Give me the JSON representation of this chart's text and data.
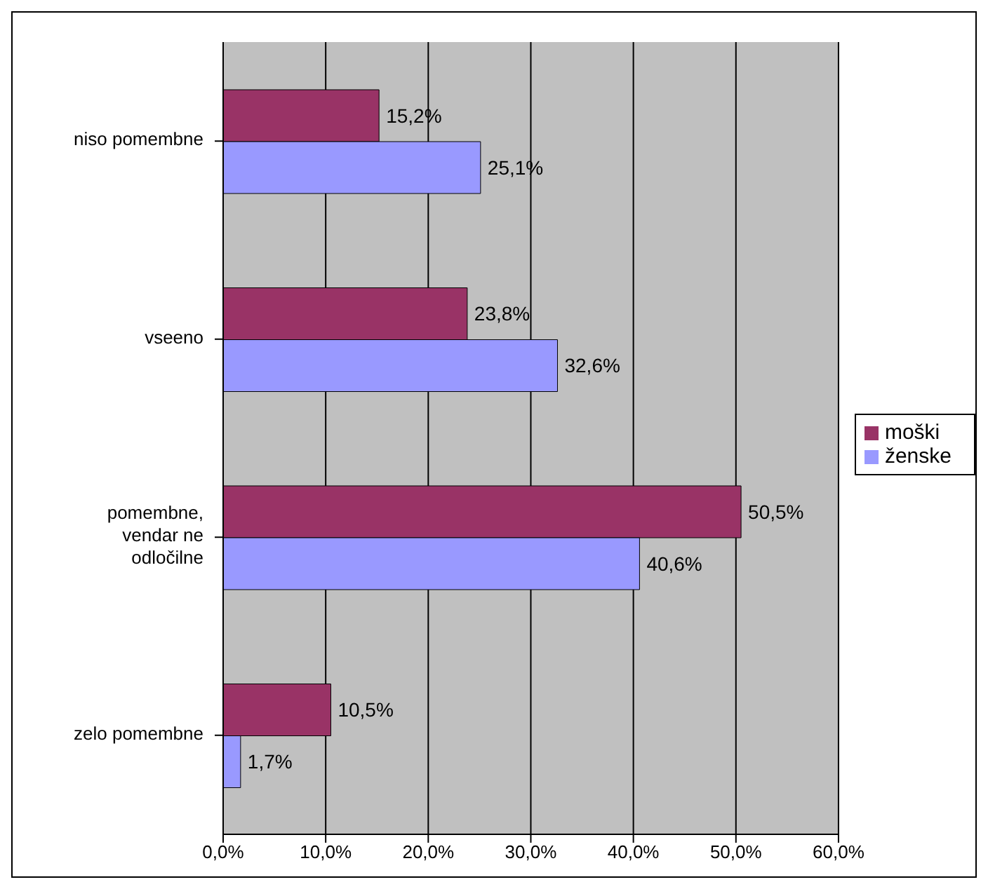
{
  "chart_data": {
    "type": "bar",
    "orientation": "horizontal",
    "categories": [
      "niso pomembne",
      "vseeno",
      "pomembne, vendar ne odločilne",
      "zelo pomembne"
    ],
    "series": [
      {
        "name": "moški",
        "color": "#993366",
        "values": [
          15.2,
          23.8,
          50.5,
          10.5
        ],
        "value_labels": [
          "15,2%",
          "23,8%",
          "50,5%",
          "10,5%"
        ]
      },
      {
        "name": "ženske",
        "color": "#9999ff",
        "values": [
          25.1,
          32.6,
          40.6,
          1.7
        ],
        "value_labels": [
          "25,1%",
          "32,6%",
          "40,6%",
          "1,7%"
        ]
      }
    ],
    "xlim": [
      0,
      60
    ],
    "xticks": [
      {
        "value": 0,
        "label": "0,0%"
      },
      {
        "value": 10,
        "label": "10,0%"
      },
      {
        "value": 20,
        "label": "20,0%"
      },
      {
        "value": 30,
        "label": "30,0%"
      },
      {
        "value": 40,
        "label": "40,0%"
      },
      {
        "value": 50,
        "label": "50,0%"
      },
      {
        "value": 60,
        "label": "60,0%"
      }
    ],
    "grid": "x",
    "legend": "right"
  }
}
